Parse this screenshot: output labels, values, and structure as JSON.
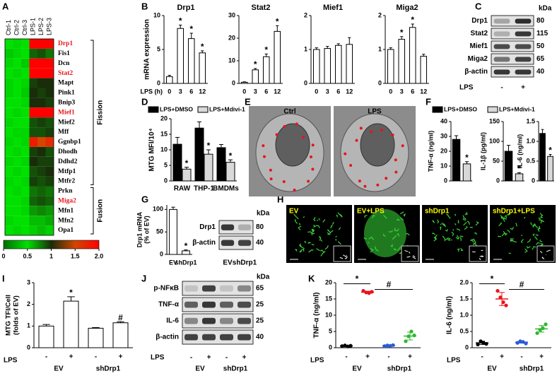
{
  "panel_labels": [
    "A",
    "B",
    "C",
    "D",
    "E",
    "F",
    "G",
    "H",
    "I",
    "J",
    "K"
  ],
  "chart_data": [
    {
      "type": "heatmap",
      "columns": [
        "Ctrl-1",
        "Ctrl-2",
        "Ctrl-3",
        "LPS-1",
        "LPS-2",
        "LPS-3"
      ],
      "rows": [
        "Drp1",
        "Fis1",
        "Dcn",
        "Stat2",
        "Mapt",
        "Pink1",
        "Bnip3",
        "Mief1",
        "Mief2",
        "Mff",
        "Ggnbp1",
        "Dhodh",
        "Ddhd2",
        "Mtfp1",
        "Mtfr2",
        "Prkn",
        "Miga2",
        "Mfn1",
        "Mfn2",
        "Opa1"
      ],
      "row_label_colors": [
        "#e8141b",
        "#000000",
        "#000000",
        "#e8141b",
        "#000000",
        "#000000",
        "#000000",
        "#e8141b",
        "#000000",
        "#000000",
        "#000000",
        "#000000",
        "#000000",
        "#000000",
        "#000000",
        "#000000",
        "#e8141b",
        "#000000",
        "#000000",
        "#000000"
      ],
      "values": [
        [
          0.5,
          0.45,
          0.5,
          2,
          2,
          2
        ],
        [
          0.4,
          0.45,
          0.5,
          0.85,
          0.9,
          0.8
        ],
        [
          0.45,
          0.5,
          0.4,
          2,
          2,
          2
        ],
        [
          0.5,
          0.45,
          0.5,
          2,
          2,
          2
        ],
        [
          0.45,
          0.5,
          0.45,
          0.95,
          1,
          1
        ],
        [
          0.45,
          0.5,
          0.4,
          1,
          0.95,
          1
        ],
        [
          0.5,
          0.5,
          0.45,
          1,
          1,
          0.95
        ],
        [
          0.5,
          0.45,
          0.5,
          2,
          2,
          2
        ],
        [
          0.45,
          0.5,
          0.5,
          0.9,
          0.95,
          0.9
        ],
        [
          0.5,
          0.45,
          0.45,
          0.9,
          0.9,
          0.95
        ],
        [
          0.45,
          0.5,
          0.45,
          1.8,
          1.5,
          1.7
        ],
        [
          0.5,
          0.45,
          0.5,
          0.95,
          1,
          0.9
        ],
        [
          0.45,
          0.5,
          0.45,
          1,
          0.95,
          0.95
        ],
        [
          0.5,
          0.45,
          0.5,
          0.9,
          0.95,
          1
        ],
        [
          0.45,
          0.5,
          0.45,
          0.95,
          0.9,
          0.95
        ],
        [
          0.5,
          0.45,
          0.5,
          0.8,
          0.85,
          0.8
        ],
        [
          0.5,
          0.5,
          0.45,
          0.85,
          0.9,
          0.85
        ],
        [
          0.5,
          0.5,
          0.45,
          0.7,
          0.75,
          0.7
        ],
        [
          0.45,
          0.5,
          0.5,
          0.6,
          0.6,
          0.65
        ],
        [
          0.5,
          0.45,
          0.5,
          0.55,
          0.6,
          0.55
        ]
      ],
      "zlim": [
        0,
        2
      ],
      "colorbar_ticks": [
        0,
        0.5,
        1,
        1.5,
        {
          "value": 2,
          "label": "2.0"
        }
      ],
      "groups": [
        {
          "label": "Fission",
          "start": 0,
          "end": 14
        },
        {
          "label": "Fusion",
          "start": 15,
          "end": 19
        }
      ]
    },
    {
      "type": "bar",
      "xlabel": "LPS (h)",
      "ylabel": "mRNA expression",
      "categories": [
        "0",
        "3",
        "6",
        "12"
      ],
      "color": "#ffffff",
      "subplots": [
        {
          "title": "Drp1",
          "values": [
            1,
            8.1,
            6.6,
            4.5
          ],
          "errors": [
            0.2,
            0.5,
            0.8,
            0.3
          ],
          "annotations": [
            null,
            "*",
            "*",
            "*"
          ],
          "ylim": [
            0,
            10
          ],
          "yticks": [
            0,
            5,
            10
          ]
        },
        {
          "title": "Stat2",
          "values": [
            0.5,
            6,
            11.8,
            23
          ],
          "errors": [
            0.2,
            0.6,
            1.2,
            2.5
          ],
          "annotations": [
            null,
            "*",
            "*",
            "*"
          ],
          "ylim": [
            0,
            30
          ],
          "yticks": [
            0,
            10,
            20,
            30
          ]
        },
        {
          "title": "Mief1",
          "values": [
            1,
            1.03,
            1.12,
            1.15
          ],
          "errors": [
            0.05,
            0.06,
            0.05,
            0.2
          ],
          "ylim": [
            0,
            2
          ],
          "yticks": [
            0,
            1,
            2
          ]
        },
        {
          "title": "Miga2",
          "values": [
            1,
            1.3,
            1.65,
            0.8
          ],
          "errors": [
            0.05,
            0.08,
            0.1,
            0.06
          ],
          "annotations": [
            null,
            "*",
            "*",
            null
          ],
          "ylim": [
            0,
            2
          ],
          "yticks": [
            0,
            1,
            2
          ]
        }
      ]
    },
    {
      "type": "bar",
      "ylabel": "MTG MFI/10⁴",
      "categories": [
        "RAW",
        "THP-1",
        "BMDMs"
      ],
      "series": [
        {
          "name": "LPS+DMSO",
          "color": "#000000",
          "values": [
            11.8,
            17,
            10.7
          ],
          "errors": [
            2.2,
            2,
            1
          ]
        },
        {
          "name": "LPS+Mdivi-1",
          "color": "#d9d9d9",
          "values": [
            3.8,
            8.6,
            6
          ],
          "errors": [
            0.6,
            1.4,
            0.8
          ],
          "annotations": [
            "*",
            "*",
            "*"
          ]
        }
      ],
      "ylim": [
        0,
        20
      ],
      "yticks": [
        0,
        5,
        10,
        15,
        20
      ]
    },
    {
      "type": "bar",
      "series": [
        {
          "name": "LPS+DMSO",
          "color": "#000000"
        },
        {
          "name": "LPS+Mdivi-1",
          "color": "#d9d9d9"
        }
      ],
      "subplots": [
        {
          "ylabel": "TNF-α (ng/ml)",
          "values": [
            28,
            11.5
          ],
          "errors": [
            2.5,
            1.5
          ],
          "annotations": [
            null,
            "*"
          ],
          "ylim": [
            0,
            40
          ],
          "yticks": [
            0,
            10,
            20,
            30,
            40
          ]
        },
        {
          "ylabel": "IL-1β (pg/ml)",
          "values": [
            75,
            18
          ],
          "errors": [
            15,
            3
          ],
          "annotations": [
            null,
            "*"
          ],
          "ylim": [
            0,
            150
          ],
          "yticks": [
            0,
            50,
            100,
            150
          ]
        },
        {
          "ylabel": "IL-6 (ng/ml)",
          "values": [
            1.2,
            0.62
          ],
          "errors": [
            0.1,
            0.05
          ],
          "annotations": [
            null,
            "*"
          ],
          "ylim": [
            0,
            1.5
          ],
          "yticks": [
            0,
            0.5,
            {
              "value": 1,
              "label": "1.0"
            },
            1.5
          ]
        }
      ]
    },
    {
      "type": "bar",
      "ylabel": [
        "Drp1 mRNA",
        "(% of EV)"
      ],
      "categories": [
        "EV",
        "shDrp1"
      ],
      "color": "#ffffff",
      "values": [
        100,
        8
      ],
      "errors": [
        5,
        2
      ],
      "annotations": [
        null,
        "*"
      ],
      "ylim": [
        0,
        110
      ],
      "yticks": [
        0,
        50,
        100
      ]
    },
    {
      "type": "bar",
      "ylabel": [
        "MTG TFI/Cell",
        "(folds of EV)"
      ],
      "categories": [
        "-",
        "+",
        "-",
        "+"
      ],
      "groups": [
        "EV",
        "shDrp1"
      ],
      "group_label": "LPS",
      "color": "#ffffff",
      "values": [
        1,
        2.15,
        0.9,
        1.15
      ],
      "errors": [
        0.07,
        0.2,
        0.03,
        0.05
      ],
      "annotations": [
        null,
        "*",
        null,
        "#"
      ],
      "ylim": [
        0,
        3
      ],
      "yticks": [
        0,
        1,
        2,
        3
      ]
    },
    {
      "type": "scatter",
      "categories": [
        "-",
        "+",
        "-",
        "+"
      ],
      "groups": [
        "EV",
        "shDrp1"
      ],
      "group_label": "LPS",
      "colors": [
        "#000000",
        "#e8141b",
        "#2a5bd7",
        "#2eb82e"
      ],
      "subplots": [
        {
          "ylabel": "TNF-α (ng/ml)",
          "points": [
            [
              0.5,
              0.7,
              0.4,
              0.6
            ],
            [
              17.5,
              17,
              16.8,
              17.2
            ],
            [
              0.5,
              0.7,
              0.6,
              0.8
            ],
            [
              2,
              3.5,
              5,
              3.8
            ]
          ],
          "means": [
            0.55,
            17.1,
            0.65,
            3.6
          ],
          "sds": [
            0.1,
            0.3,
            0.1,
            1.2
          ],
          "brackets": [
            {
              "label": "*",
              "between": [
                0,
                1
              ]
            },
            {
              "label": "#",
              "between": [
                1,
                3
              ]
            }
          ],
          "ylim": [
            0,
            20
          ],
          "yticks": [
            0,
            5,
            10,
            15,
            20
          ]
        },
        {
          "ylabel": "IL-6 (ng/ml)",
          "points": [
            [
              0.1,
              0.2,
              0.15,
              0.12
            ],
            [
              1.75,
              1.55,
              1.4,
              1.3
            ],
            [
              0.15,
              0.2,
              0.18,
              0.13
            ],
            [
              0.45,
              0.55,
              0.6,
              0.72
            ]
          ],
          "means": [
            0.15,
            1.5,
            0.17,
            0.58
          ],
          "sds": [
            0.05,
            0.2,
            0.03,
            0.1
          ],
          "brackets": [
            {
              "label": "*",
              "between": [
                0,
                1
              ]
            },
            {
              "label": "#",
              "between": [
                1,
                3
              ]
            }
          ],
          "ylim": [
            0,
            2
          ],
          "yticks": [
            0,
            0.5,
            {
              "value": 1,
              "label": "1.0"
            },
            1.5,
            {
              "value": 2,
              "label": "2.0"
            }
          ]
        }
      ]
    }
  ],
  "blots": {
    "C": {
      "kda_label": "kDa",
      "bands": [
        {
          "label": "Drp1",
          "kda": 80
        },
        {
          "label": "Stat2",
          "kda": 115
        },
        {
          "label": "Mief1",
          "kda": 50
        },
        {
          "label": "Miga2",
          "kda": 65
        },
        {
          "label": "β-actin",
          "kda": 40
        }
      ],
      "lane_label": "LPS",
      "lanes": [
        "-",
        "+"
      ]
    },
    "G": {
      "kda_label": "kDa",
      "bands": [
        {
          "label": "Drp1",
          "kda": 80
        },
        {
          "label": "β-actin",
          "kda": 40
        }
      ],
      "lanes": [
        "EV",
        "shDrp1"
      ]
    },
    "J": {
      "kda_label": "kDa",
      "bands": [
        {
          "label": "p-NFκB",
          "kda": 65
        },
        {
          "label": "TNF-α",
          "kda": 25
        },
        {
          "label": "IL-6",
          "kda": 25
        },
        {
          "label": "β-actin",
          "kda": 40
        }
      ],
      "lane_label": "LPS",
      "lanes": [
        "-",
        "+",
        "-",
        "+"
      ],
      "groups": [
        "EV",
        "shDrp1"
      ]
    }
  },
  "images": {
    "E": [
      "Ctrl",
      "LPS"
    ],
    "H": [
      "EV",
      "EV+LPS",
      "shDrp1",
      "shDrp1+LPS"
    ]
  }
}
